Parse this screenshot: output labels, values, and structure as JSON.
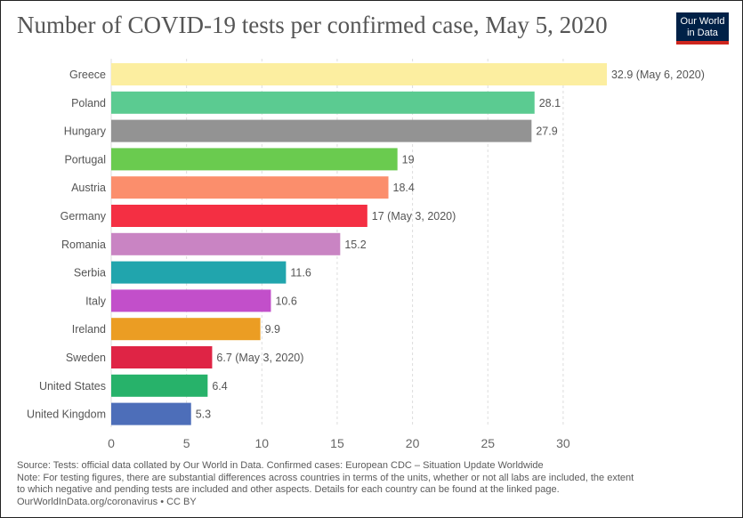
{
  "header": {
    "title": "Number of COVID-19 tests per confirmed case, May 5, 2020",
    "logo_line1": "Our World",
    "logo_line2": "in Data"
  },
  "colors": {
    "logo_bg": "#002147",
    "logo_accent": "#ce261e",
    "grid": "#dddddd",
    "text": "#555555"
  },
  "chart_data": {
    "type": "bar",
    "orientation": "horizontal",
    "title": "Number of COVID-19 tests per confirmed case, May 5, 2020",
    "xlabel": "",
    "ylabel": "",
    "xlim": [
      0,
      33
    ],
    "xticks": [
      0,
      5,
      10,
      15,
      20,
      25,
      30
    ],
    "grid": "vertical dashed",
    "categories": [
      "Greece",
      "Poland",
      "Hungary",
      "Portugal",
      "Austria",
      "Germany",
      "Romania",
      "Serbia",
      "Italy",
      "Ireland",
      "Sweden",
      "United States",
      "United Kingdom"
    ],
    "values": [
      32.9,
      28.1,
      27.9,
      19,
      18.4,
      17,
      15.2,
      11.6,
      10.6,
      9.9,
      6.7,
      6.4,
      5.3
    ],
    "value_labels": [
      "32.9 (May 6, 2020)",
      "28.1",
      "27.9",
      "19",
      "18.4",
      "17 (May 3, 2020)",
      "15.2",
      "11.6",
      "10.6",
      "9.9",
      "6.7 (May 3, 2020)",
      "6.4",
      "5.3"
    ],
    "bar_colors": [
      "#fceea0",
      "#5bcb91",
      "#939393",
      "#6acb4f",
      "#fb8e6c",
      "#f42f43",
      "#c984c3",
      "#21a5ad",
      "#c24fca",
      "#eb9d23",
      "#df2445",
      "#27b26a",
      "#4d6eb9"
    ]
  },
  "footer": {
    "source": "Source: Tests: official data collated by Our World in Data. Confirmed cases: European CDC – Situation Update Worldwide",
    "note_line1": "Note: For testing figures, there are substantial differences across countries in terms of the units, whether or not all labs are included, the extent",
    "note_line2": "to which negative and pending tests are included and other aspects. Details for each country can be found at the linked page.",
    "credit": "OurWorldInData.org/coronavirus • CC BY"
  }
}
